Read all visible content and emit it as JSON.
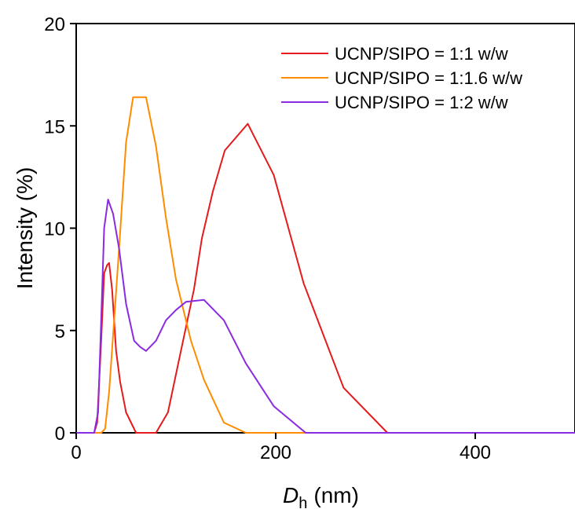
{
  "chart_data": {
    "type": "line",
    "title": "",
    "xlabel_main": "D",
    "xlabel_sub": "h",
    "xlabel_unit": "(nm)",
    "ylabel": "Intensity (%)",
    "xlim": [
      0,
      500
    ],
    "ylim": [
      0,
      20
    ],
    "xticks": [
      0,
      200,
      400
    ],
    "yticks": [
      0,
      5,
      10,
      15,
      20
    ],
    "grid": false,
    "legend_position": "top-right",
    "series": [
      {
        "name": "UCNP/SIPO = 1:1 w/w",
        "color": "#e41a1c",
        "x": [
          0,
          18,
          21,
          25,
          28,
          31,
          33,
          36,
          40,
          44,
          50,
          60,
          70,
          80,
          92,
          105,
          118,
          126,
          137,
          149,
          172,
          198,
          228,
          268,
          312,
          500
        ],
        "y": [
          0,
          0,
          0.5,
          4.5,
          7.8,
          8.2,
          8.3,
          7.0,
          4.0,
          2.5,
          1.0,
          0,
          0,
          0,
          1.0,
          4.0,
          7.0,
          9.5,
          11.8,
          13.8,
          15.1,
          12.6,
          7.3,
          2.2,
          0,
          0
        ]
      },
      {
        "name": "UCNP/SIPO = 1:1.6 w/w",
        "color": "#ff8c00",
        "x": [
          0,
          25,
          29,
          33,
          38,
          43,
          50,
          57,
          62,
          70,
          80,
          90,
          100,
          115,
          128,
          148,
          170,
          500
        ],
        "y": [
          0,
          0,
          0.2,
          2.0,
          5.5,
          9.0,
          14.2,
          16.4,
          16.4,
          16.4,
          14.0,
          10.5,
          7.5,
          4.5,
          2.6,
          0.5,
          0,
          0
        ]
      },
      {
        "name": "UCNP/SIPO = 1:2 w/w",
        "color": "#8a2be2",
        "x": [
          0,
          18,
          22,
          25,
          28,
          32,
          37,
          43,
          50,
          58,
          64,
          70,
          80,
          90,
          100,
          110,
          128,
          148,
          170,
          198,
          230,
          500
        ],
        "y": [
          0,
          0,
          1.0,
          5.5,
          10.0,
          11.4,
          10.7,
          9.0,
          6.3,
          4.5,
          4.2,
          4.0,
          4.5,
          5.5,
          6.0,
          6.4,
          6.5,
          5.5,
          3.4,
          1.3,
          0,
          0
        ]
      }
    ]
  }
}
